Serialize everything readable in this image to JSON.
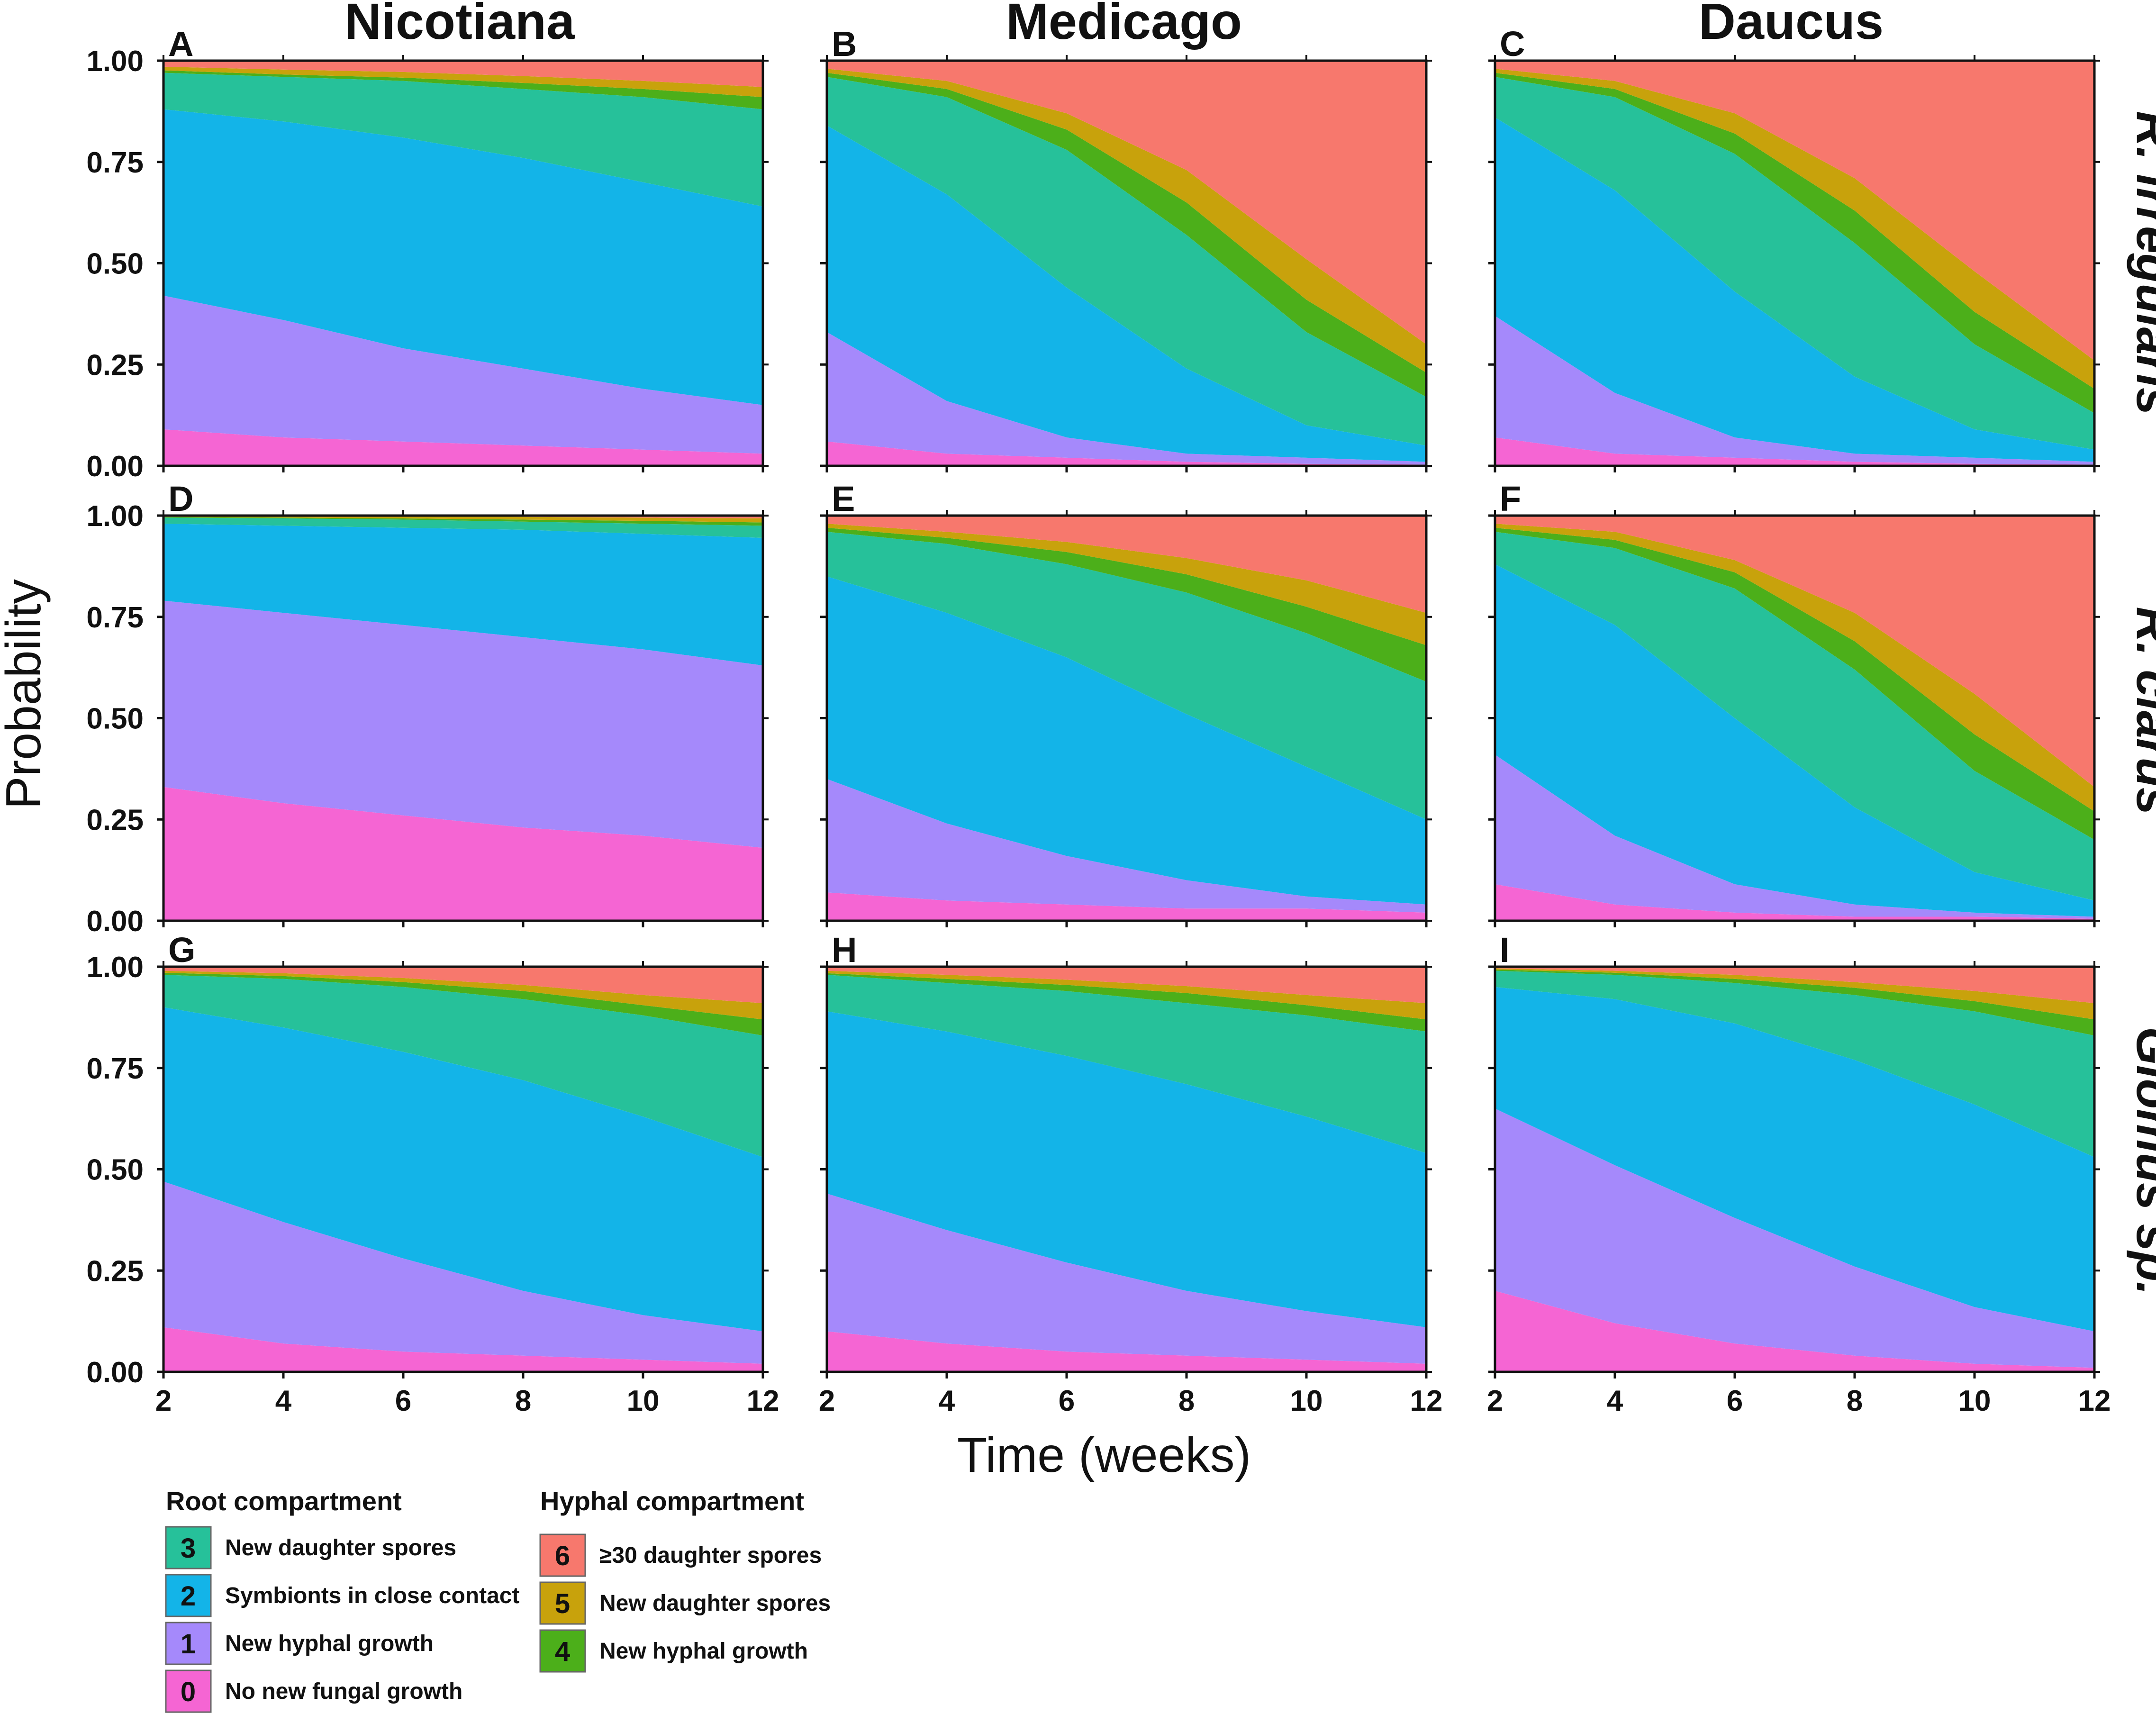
{
  "chart_data": {
    "type": "area",
    "stacked": true,
    "ylabel": "Probability",
    "xlabel": "Time (weeks)",
    "x": [
      2,
      4,
      6,
      8,
      10,
      12
    ],
    "xticks": [
      "2",
      "4",
      "6",
      "8",
      "10",
      "12"
    ],
    "yticks": [
      "0.00",
      "0.25",
      "0.50",
      "0.75",
      "1.00"
    ],
    "ylim": [
      0,
      1
    ],
    "xlim": [
      2,
      12
    ],
    "columns": [
      "Nicotiana",
      "Medicago",
      "Daucus"
    ],
    "rows": [
      "R. irregularis",
      "R. clarus",
      "Glomus sp."
    ],
    "state_order": [
      "0",
      "1",
      "2",
      "3",
      "4",
      "5",
      "6"
    ],
    "colors": {
      "0": "#f565d3",
      "1": "#a589fb",
      "2": "#13b4e8",
      "3": "#26c19a",
      "4": "#4caf1a",
      "5": "#c8a20c",
      "6": "#f7786d"
    },
    "panels": [
      {
        "letter": "A",
        "column": "Nicotiana",
        "row": "R. irregularis",
        "cumulative": [
          [
            0.09,
            0.07,
            0.06,
            0.05,
            0.04,
            0.03
          ],
          [
            0.42,
            0.36,
            0.29,
            0.24,
            0.19,
            0.15
          ],
          [
            0.88,
            0.85,
            0.81,
            0.76,
            0.7,
            0.64
          ],
          [
            0.97,
            0.96,
            0.95,
            0.93,
            0.91,
            0.88
          ],
          [
            0.976,
            0.966,
            0.958,
            0.945,
            0.93,
            0.91
          ],
          [
            0.985,
            0.978,
            0.972,
            0.962,
            0.95,
            0.935
          ]
        ]
      },
      {
        "letter": "B",
        "column": "Medicago",
        "row": "R. irregularis",
        "cumulative": [
          [
            0.06,
            0.03,
            0.02,
            0.01,
            0.005,
            0.003
          ],
          [
            0.33,
            0.16,
            0.07,
            0.03,
            0.02,
            0.01
          ],
          [
            0.84,
            0.67,
            0.44,
            0.24,
            0.1,
            0.05
          ],
          [
            0.96,
            0.91,
            0.78,
            0.57,
            0.33,
            0.17
          ],
          [
            0.97,
            0.93,
            0.83,
            0.65,
            0.41,
            0.23
          ],
          [
            0.98,
            0.95,
            0.87,
            0.73,
            0.51,
            0.3
          ]
        ]
      },
      {
        "letter": "C",
        "column": "Daucus",
        "row": "R. irregularis",
        "cumulative": [
          [
            0.07,
            0.03,
            0.02,
            0.01,
            0.005,
            0.003
          ],
          [
            0.37,
            0.18,
            0.07,
            0.03,
            0.02,
            0.01
          ],
          [
            0.86,
            0.68,
            0.43,
            0.22,
            0.09,
            0.04
          ],
          [
            0.96,
            0.91,
            0.77,
            0.55,
            0.3,
            0.13
          ],
          [
            0.97,
            0.93,
            0.82,
            0.63,
            0.38,
            0.19
          ],
          [
            0.98,
            0.95,
            0.87,
            0.71,
            0.48,
            0.26
          ]
        ]
      },
      {
        "letter": "D",
        "column": "Nicotiana",
        "row": "R. clarus",
        "cumulative": [
          [
            0.33,
            0.29,
            0.26,
            0.23,
            0.21,
            0.18
          ],
          [
            0.79,
            0.76,
            0.73,
            0.7,
            0.67,
            0.63
          ],
          [
            0.98,
            0.975,
            0.97,
            0.965,
            0.955,
            0.945
          ],
          [
            0.995,
            0.993,
            0.99,
            0.985,
            0.98,
            0.975
          ],
          [
            0.997,
            0.995,
            0.993,
            0.99,
            0.987,
            0.983
          ],
          [
            1.0,
            1.0,
            0.998,
            0.997,
            0.995,
            0.993
          ]
        ]
      },
      {
        "letter": "E",
        "column": "Medicago",
        "row": "R. clarus",
        "cumulative": [
          [
            0.07,
            0.05,
            0.04,
            0.03,
            0.03,
            0.02
          ],
          [
            0.35,
            0.24,
            0.16,
            0.1,
            0.06,
            0.04
          ],
          [
            0.85,
            0.76,
            0.65,
            0.51,
            0.38,
            0.25
          ],
          [
            0.96,
            0.93,
            0.88,
            0.81,
            0.71,
            0.59
          ],
          [
            0.97,
            0.945,
            0.91,
            0.855,
            0.775,
            0.68
          ],
          [
            0.98,
            0.96,
            0.935,
            0.895,
            0.84,
            0.76
          ]
        ]
      },
      {
        "letter": "F",
        "column": "Daucus",
        "row": "R. clarus",
        "cumulative": [
          [
            0.09,
            0.04,
            0.02,
            0.01,
            0.01,
            0.005
          ],
          [
            0.41,
            0.21,
            0.09,
            0.04,
            0.02,
            0.01
          ],
          [
            0.88,
            0.73,
            0.5,
            0.28,
            0.12,
            0.05
          ],
          [
            0.96,
            0.92,
            0.82,
            0.62,
            0.37,
            0.2
          ],
          [
            0.97,
            0.94,
            0.86,
            0.69,
            0.46,
            0.27
          ],
          [
            0.98,
            0.96,
            0.89,
            0.76,
            0.56,
            0.33
          ]
        ]
      },
      {
        "letter": "G",
        "column": "Nicotiana",
        "row": "Glomus sp.",
        "cumulative": [
          [
            0.11,
            0.07,
            0.05,
            0.04,
            0.03,
            0.02
          ],
          [
            0.47,
            0.37,
            0.28,
            0.2,
            0.14,
            0.1
          ],
          [
            0.9,
            0.85,
            0.79,
            0.72,
            0.63,
            0.53
          ],
          [
            0.98,
            0.97,
            0.95,
            0.92,
            0.88,
            0.83
          ],
          [
            0.985,
            0.977,
            0.962,
            0.94,
            0.905,
            0.87
          ],
          [
            0.99,
            0.984,
            0.972,
            0.955,
            0.93,
            0.91
          ]
        ]
      },
      {
        "letter": "H",
        "column": "Medicago",
        "row": "Glomus sp.",
        "cumulative": [
          [
            0.1,
            0.07,
            0.05,
            0.04,
            0.03,
            0.02
          ],
          [
            0.44,
            0.35,
            0.27,
            0.2,
            0.15,
            0.11
          ],
          [
            0.89,
            0.84,
            0.78,
            0.71,
            0.63,
            0.54
          ],
          [
            0.98,
            0.96,
            0.94,
            0.91,
            0.88,
            0.84
          ],
          [
            0.984,
            0.97,
            0.955,
            0.935,
            0.905,
            0.87
          ],
          [
            0.99,
            0.98,
            0.968,
            0.952,
            0.93,
            0.91
          ]
        ]
      },
      {
        "letter": "I",
        "column": "Daucus",
        "row": "Glomus sp.",
        "cumulative": [
          [
            0.2,
            0.12,
            0.07,
            0.04,
            0.02,
            0.01
          ],
          [
            0.65,
            0.51,
            0.38,
            0.26,
            0.16,
            0.1
          ],
          [
            0.95,
            0.92,
            0.86,
            0.77,
            0.66,
            0.53
          ],
          [
            0.99,
            0.98,
            0.96,
            0.93,
            0.89,
            0.83
          ],
          [
            0.993,
            0.985,
            0.97,
            0.948,
            0.915,
            0.87
          ],
          [
            0.996,
            0.99,
            0.98,
            0.962,
            0.94,
            0.91
          ]
        ]
      }
    ],
    "legend": {
      "root_title": "Root compartment",
      "hyphal_title": "Hyphal compartment",
      "root_items": [
        {
          "num": "3",
          "label": "New daughter spores",
          "color": "#26c19a"
        },
        {
          "num": "2",
          "label": "Symbionts in close contact",
          "color": "#13b4e8"
        },
        {
          "num": "1",
          "label": "New hyphal growth",
          "color": "#a589fb"
        },
        {
          "num": "0",
          "label": "No new fungal growth",
          "color": "#f565d3"
        }
      ],
      "hyphal_items": [
        {
          "num": "6",
          "label": "≥30 daughter spores",
          "color": "#f7786d"
        },
        {
          "num": "5",
          "label": "New daughter spores",
          "color": "#c8a20c"
        },
        {
          "num": "4",
          "label": "New hyphal growth",
          "color": "#4caf1a"
        }
      ]
    }
  }
}
